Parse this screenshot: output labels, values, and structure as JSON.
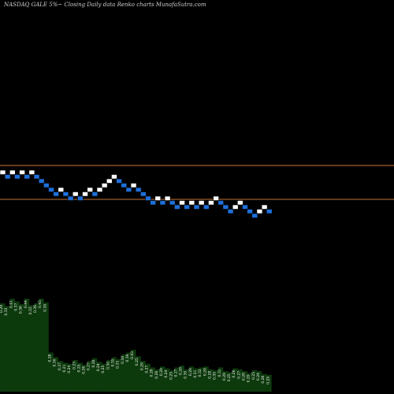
{
  "header": "NASDAQ GALE 5%~  Closing Daily data  Renko  charts MunafaSutra.com",
  "chart_data": {
    "type": "renko",
    "box_size_pct": 5,
    "reference_lines": [
      {
        "kind": "upper",
        "color": "#c87533"
      },
      {
        "kind": "lower",
        "color": "#c87533"
      }
    ],
    "colors": {
      "up": "#ffffff",
      "down": "#1e6fd9",
      "volume": "#0d3a0d",
      "background": "#000000"
    },
    "bricks": [
      {
        "d": "up",
        "y": 0
      },
      {
        "d": "down",
        "y": 1
      },
      {
        "d": "up",
        "y": 0
      },
      {
        "d": "down",
        "y": 1
      },
      {
        "d": "up",
        "y": 0
      },
      {
        "d": "down",
        "y": 1
      },
      {
        "d": "up",
        "y": 0
      },
      {
        "d": "down",
        "y": 1
      },
      {
        "d": "down",
        "y": 2
      },
      {
        "d": "down",
        "y": 3
      },
      {
        "d": "down",
        "y": 4
      },
      {
        "d": "down",
        "y": 5
      },
      {
        "d": "up",
        "y": 4
      },
      {
        "d": "down",
        "y": 5
      },
      {
        "d": "down",
        "y": 6
      },
      {
        "d": "up",
        "y": 5
      },
      {
        "d": "down",
        "y": 6
      },
      {
        "d": "up",
        "y": 5
      },
      {
        "d": "up",
        "y": 4
      },
      {
        "d": "down",
        "y": 5
      },
      {
        "d": "up",
        "y": 4
      },
      {
        "d": "up",
        "y": 3
      },
      {
        "d": "up",
        "y": 2
      },
      {
        "d": "up",
        "y": 1
      },
      {
        "d": "down",
        "y": 2
      },
      {
        "d": "down",
        "y": 3
      },
      {
        "d": "down",
        "y": 4
      },
      {
        "d": "up",
        "y": 3
      },
      {
        "d": "down",
        "y": 4
      },
      {
        "d": "down",
        "y": 5
      },
      {
        "d": "down",
        "y": 6
      },
      {
        "d": "down",
        "y": 7
      },
      {
        "d": "up",
        "y": 6
      },
      {
        "d": "down",
        "y": 7
      },
      {
        "d": "up",
        "y": 6
      },
      {
        "d": "down",
        "y": 7
      },
      {
        "d": "down",
        "y": 8
      },
      {
        "d": "up",
        "y": 7
      },
      {
        "d": "down",
        "y": 8
      },
      {
        "d": "up",
        "y": 7
      },
      {
        "d": "down",
        "y": 8
      },
      {
        "d": "up",
        "y": 7
      },
      {
        "d": "down",
        "y": 8
      },
      {
        "d": "up",
        "y": 7
      },
      {
        "d": "up",
        "y": 6
      },
      {
        "d": "down",
        "y": 7
      },
      {
        "d": "down",
        "y": 8
      },
      {
        "d": "down",
        "y": 9
      },
      {
        "d": "up",
        "y": 8
      },
      {
        "d": "up",
        "y": 7
      },
      {
        "d": "down",
        "y": 8
      },
      {
        "d": "down",
        "y": 9
      },
      {
        "d": "down",
        "y": 10
      },
      {
        "d": "up",
        "y": 9
      },
      {
        "d": "up",
        "y": 8
      },
      {
        "d": "down",
        "y": 9
      }
    ],
    "volume_labels": [
      "0.29",
      "0.33",
      "0.41",
      "0.37",
      "0.36",
      "0.44",
      "0.33",
      "0.36",
      "0.45",
      "0.35",
      "0.28",
      "0.30",
      "0.37",
      "0.21",
      "0.24",
      "0.23",
      "0.25",
      "0.26",
      "0.27",
      "0.28",
      "0.24",
      "0.25",
      "0.30",
      "0.35",
      "0.33",
      "0.30",
      "0.34",
      "0.43",
      "0.25",
      "0.29",
      "0.27",
      "0.28",
      "0.26",
      "0.29",
      "0.24",
      "0.25",
      "0.27",
      "0.28",
      "0.30",
      "0.29",
      "0.31",
      "0.32",
      "0.29",
      "0.28",
      "0.30",
      "0.31",
      "0.29",
      "0.25",
      "0.26",
      "0.27",
      "0.28",
      "0.29",
      "0.25",
      "0.24",
      "0.26",
      "0.25"
    ],
    "volume_heights": [
      0.95,
      0.92,
      1.0,
      0.97,
      0.94,
      1.0,
      0.93,
      0.95,
      1.0,
      0.96,
      0.42,
      0.37,
      0.33,
      0.31,
      0.3,
      0.34,
      0.31,
      0.29,
      0.33,
      0.36,
      0.32,
      0.3,
      0.34,
      0.37,
      0.35,
      0.4,
      0.42,
      0.45,
      0.38,
      0.33,
      0.3,
      0.26,
      0.24,
      0.27,
      0.25,
      0.23,
      0.26,
      0.28,
      0.24,
      0.27,
      0.25,
      0.26,
      0.27,
      0.24,
      0.23,
      0.26,
      0.22,
      0.21,
      0.25,
      0.24,
      0.22,
      0.2,
      0.23,
      0.22,
      0.19,
      0.18
    ]
  }
}
